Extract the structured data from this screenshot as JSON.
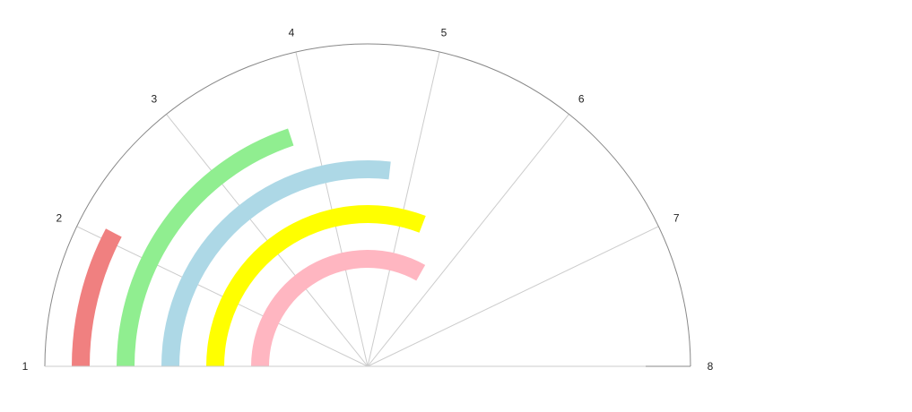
{
  "chart_data": {
    "type": "radial_bar",
    "axis": {
      "min": 1,
      "max": 8,
      "ticks": [
        "1",
        "2",
        "3",
        "4",
        "5",
        "6",
        "7",
        "8"
      ]
    },
    "series": [
      {
        "value": 2.08,
        "color": "#f08080"
      },
      {
        "value": 3.78,
        "color": "#90ee90"
      },
      {
        "value": 4.75,
        "color": "#add8e6"
      },
      {
        "value": 5.32,
        "color": "#ffff00"
      },
      {
        "value": 5.65,
        "color": "#ffb6c1"
      }
    ],
    "grid": true,
    "colors": {
      "outline": "#888888",
      "gridline": "#cccccc"
    }
  }
}
